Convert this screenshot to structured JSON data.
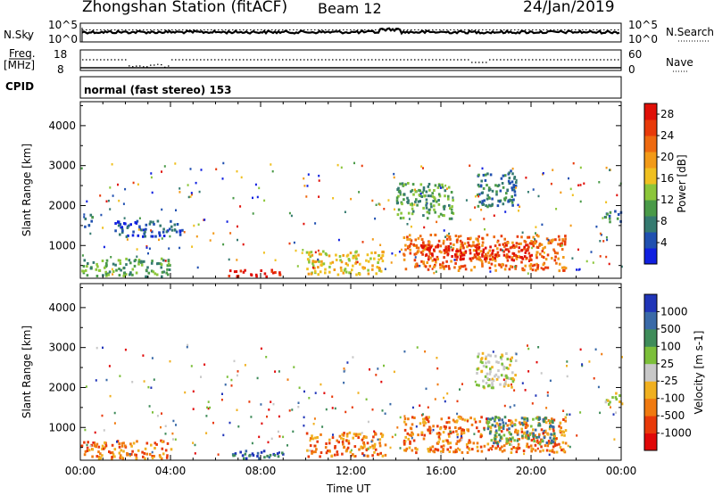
{
  "header": {
    "station": "Zhongshan Station (fitACF)",
    "beam": "Beam 12",
    "date": "24/Jan/2019"
  },
  "top_panels": {
    "nsky_label": "N.Sky",
    "nsky_ticks": [
      "10^5",
      "10^0"
    ],
    "nsearch_label": "N.Search",
    "nsearch_ticks": [
      "10^5",
      "10^0"
    ],
    "freq_label": "Freq.",
    "freq_unit": "[MHz]",
    "freq_ticks": [
      "18",
      "8"
    ],
    "nave_label": "Nave",
    "nave_ticks": [
      "60",
      "0"
    ],
    "cpid_label": "CPID",
    "cpid_text": "normal (fast stereo) 153"
  },
  "chart_data": [
    {
      "type": "heatmap",
      "name": "power",
      "xlabel": "",
      "ylabel": "Slant Range [km]",
      "x_ticks": [
        "00:00",
        "04:00",
        "08:00",
        "12:00",
        "16:00",
        "20:00",
        "00:00"
      ],
      "x_range_hours": [
        0,
        24
      ],
      "y_ticks": [
        1000,
        2000,
        3000,
        4000
      ],
      "y_range_km": [
        180,
        4600
      ],
      "colorbar": {
        "label": "Power [dB]",
        "ticks": [
          "4",
          "8",
          "12",
          "16",
          "20",
          "24",
          "28"
        ],
        "range": [
          0,
          30
        ],
        "colors": [
          "#1020e0",
          "#2050b0",
          "#357a70",
          "#4a9a48",
          "#8cc63a",
          "#f0c020",
          "#f29a18",
          "#ee6a10",
          "#e83a0a",
          "#e01008"
        ]
      },
      "regions": [
        {
          "t": [
            0,
            0.5
          ],
          "r": [
            1500,
            1800
          ],
          "level": 2
        },
        {
          "t": [
            1.5,
            4.5
          ],
          "r": [
            1250,
            1650
          ],
          "level": 1
        },
        {
          "t": [
            0,
            4
          ],
          "r": [
            250,
            700
          ],
          "level": 3
        },
        {
          "t": [
            6.5,
            9
          ],
          "r": [
            250,
            420
          ],
          "level": 9
        },
        {
          "t": [
            10,
            13.5
          ],
          "r": [
            300,
            900
          ],
          "level": 5
        },
        {
          "t": [
            14.3,
            21.5
          ],
          "r": [
            400,
            1300
          ],
          "level": 7
        },
        {
          "t": [
            15,
            20
          ],
          "r": [
            650,
            1050
          ],
          "level": 9
        },
        {
          "t": [
            14,
            16.5
          ],
          "r": [
            1700,
            2600
          ],
          "level": 3
        },
        {
          "t": [
            17.5,
            19.3
          ],
          "r": [
            2000,
            2900
          ],
          "level": 2
        },
        {
          "t": [
            23.2,
            24
          ],
          "r": [
            1600,
            1900
          ],
          "level": 2
        }
      ]
    },
    {
      "type": "heatmap",
      "name": "velocity",
      "xlabel": "Time UT",
      "ylabel": "Slant Range [km]",
      "x_ticks": [
        "00:00",
        "04:00",
        "08:00",
        "12:00",
        "16:00",
        "20:00",
        "00:00"
      ],
      "x_range_hours": [
        0,
        24
      ],
      "y_ticks": [
        1000,
        2000,
        3000,
        4000
      ],
      "y_range_km": [
        180,
        4600
      ],
      "colorbar": {
        "label": "Velocity [m s-1]",
        "ticks": [
          "1000",
          "500",
          "100",
          "25",
          "-25",
          "-100",
          "-500",
          "-1000"
        ],
        "colors": [
          "#2035b8",
          "#3a6aa8",
          "#3f8c5a",
          "#7cbf3a",
          "#c8c8c8",
          "#f0b020",
          "#f07a10",
          "#e83a0a",
          "#e00808"
        ]
      },
      "regions": [
        {
          "t": [
            0,
            4
          ],
          "r": [
            250,
            700
          ],
          "level": 6
        },
        {
          "t": [
            6.5,
            9
          ],
          "r": [
            250,
            450
          ],
          "level": 1
        },
        {
          "t": [
            10,
            13.5
          ],
          "r": [
            300,
            900
          ],
          "level": 6
        },
        {
          "t": [
            14.3,
            21.5
          ],
          "r": [
            400,
            1300
          ],
          "level": 6
        },
        {
          "t": [
            18,
            21
          ],
          "r": [
            600,
            1300
          ],
          "level": 2
        },
        {
          "t": [
            17.5,
            19.3
          ],
          "r": [
            2000,
            2900
          ],
          "level": 4
        },
        {
          "t": [
            23.2,
            24
          ],
          "r": [
            1600,
            1900
          ],
          "level": 4
        }
      ]
    }
  ]
}
